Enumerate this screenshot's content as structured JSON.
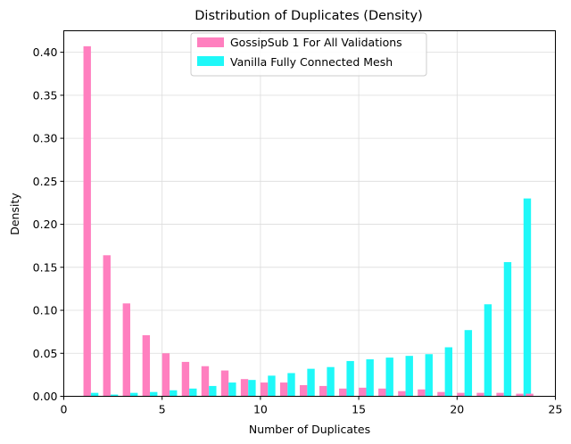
{
  "chart_data": {
    "type": "bar",
    "title": "Distribution of Duplicates (Density)",
    "xlabel": "Number of Duplicates",
    "ylabel": "Density",
    "xlim": [
      0,
      25
    ],
    "ylim": [
      0,
      0.425
    ],
    "xticks": [
      0,
      5,
      10,
      15,
      20,
      25
    ],
    "yticks": [
      0.0,
      0.05,
      0.1,
      0.15,
      0.2,
      0.25,
      0.3,
      0.35,
      0.4
    ],
    "ytick_labels": [
      "0.00",
      "0.05",
      "0.10",
      "0.15",
      "0.20",
      "0.25",
      "0.30",
      "0.35",
      "0.40"
    ],
    "grid": true,
    "legend_position": "top-center",
    "bins": [
      1,
      2,
      3,
      4,
      5,
      6,
      7,
      8,
      9,
      10,
      11,
      12,
      13,
      14,
      15,
      16,
      17,
      18,
      19,
      20,
      21,
      22,
      23
    ],
    "series": [
      {
        "name": "GossipSub 1 For All Validations",
        "color": "#ff7fbf",
        "values": [
          0.407,
          0.164,
          0.108,
          0.071,
          0.05,
          0.04,
          0.035,
          0.03,
          0.02,
          0.016,
          0.016,
          0.013,
          0.012,
          0.009,
          0.01,
          0.009,
          0.006,
          0.008,
          0.005,
          0.004,
          0.004,
          0.004,
          0.003
        ]
      },
      {
        "name": "Vanilla Fully Connected Mesh",
        "color": "#1ff8f8",
        "values": [
          0.004,
          0.002,
          0.004,
          0.005,
          0.007,
          0.009,
          0.012,
          0.016,
          0.019,
          0.024,
          0.027,
          0.032,
          0.034,
          0.041,
          0.043,
          0.045,
          0.047,
          0.049,
          0.057,
          0.077,
          0.107,
          0.156,
          0.23
        ]
      }
    ],
    "trailing_bar": {
      "series": 0,
      "x": 23.5,
      "value": 0.003
    }
  }
}
